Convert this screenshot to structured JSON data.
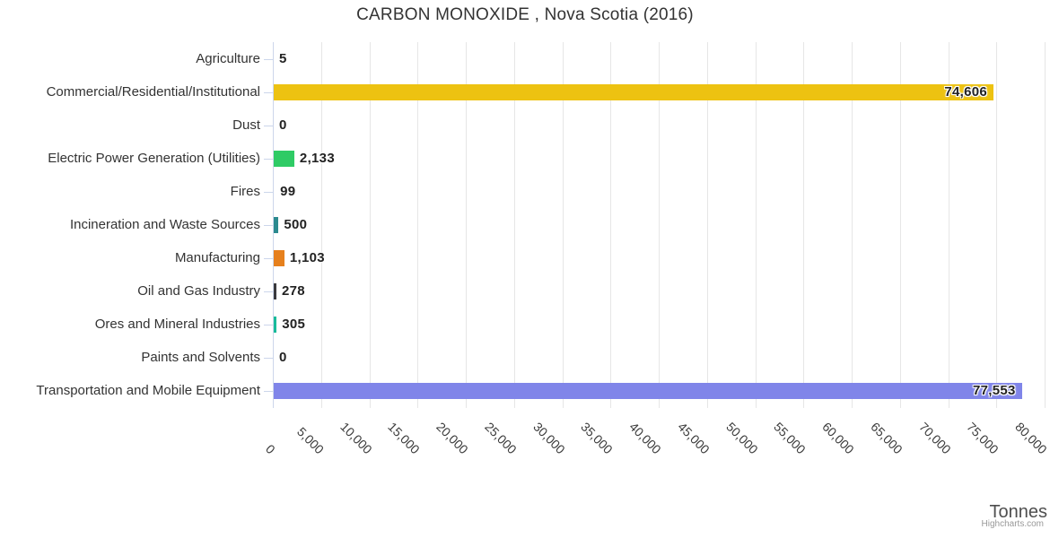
{
  "title": "CARBON MONOXIDE , Nova Scotia (2016)",
  "credits": "Highcharts.com",
  "colors": {
    "axis_line": "#ccd6eb",
    "gridline": "#e6e6e6",
    "title_text": "#333333",
    "label_text": "#333333",
    "value_text": "#222222",
    "axis_title_text": "#4e4e4e",
    "credits_text": "#999999"
  },
  "chart_data": {
    "type": "bar",
    "orientation": "horizontal",
    "title": "CARBON MONOXIDE , Nova Scotia (2016)",
    "xlabel": "Tonnes",
    "ylabel": "",
    "xlim": [
      0,
      80000
    ],
    "tick_interval": 5000,
    "grid": true,
    "legend": "none",
    "x_ticks": [
      "0",
      "5,000",
      "10,000",
      "15,000",
      "20,000",
      "25,000",
      "30,000",
      "35,000",
      "40,000",
      "45,000",
      "50,000",
      "55,000",
      "60,000",
      "65,000",
      "70,000",
      "75,000",
      "80,000"
    ],
    "points": [
      {
        "label": "Agriculture",
        "value": 5,
        "display": "5",
        "color": null,
        "label_inside": false
      },
      {
        "label": "Commercial/Residential/Institutional",
        "value": 74606,
        "display": "74,606",
        "color": "#edc211",
        "label_inside": true
      },
      {
        "label": "Dust",
        "value": 0,
        "display": "0",
        "color": null,
        "label_inside": false
      },
      {
        "label": "Electric Power Generation (Utilities)",
        "value": 2133,
        "display": "2,133",
        "color": "#2fcb65",
        "label_inside": false
      },
      {
        "label": "Fires",
        "value": 99,
        "display": "99",
        "color": null,
        "label_inside": false
      },
      {
        "label": "Incineration and Waste Sources",
        "value": 500,
        "display": "500",
        "color": "#2b8a8f",
        "label_inside": false
      },
      {
        "label": "Manufacturing",
        "value": 1103,
        "display": "1,103",
        "color": "#e6801d",
        "label_inside": false
      },
      {
        "label": "Oil and Gas Industry",
        "value": 278,
        "display": "278",
        "color": "#3a3a3e",
        "label_inside": false
      },
      {
        "label": "Ores and Mineral Industries",
        "value": 305,
        "display": "305",
        "color": "#18bb9a",
        "label_inside": false
      },
      {
        "label": "Paints and Solvents",
        "value": 0,
        "display": "0",
        "color": null,
        "label_inside": false
      },
      {
        "label": "Transportation and Mobile Equipment",
        "value": 77553,
        "display": "77,553",
        "color": "#8085e9",
        "label_inside": true
      }
    ]
  }
}
